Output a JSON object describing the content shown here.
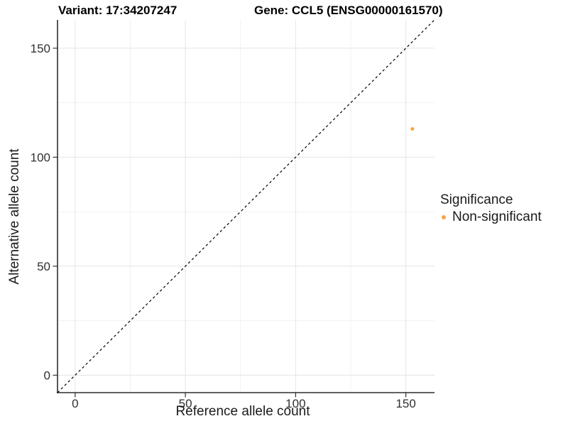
{
  "header": {
    "variant_title": "Variant: 17:34207247",
    "gene_title": "Gene: CCL5 (ENSG00000161570)"
  },
  "legend": {
    "title": "Significance",
    "items": [
      {
        "label": "Non-significant",
        "color": "#F9A440",
        "marker": "circle-icon"
      }
    ]
  },
  "chart_data": {
    "type": "scatter",
    "title": "Variant: 17:34207247    Gene: CCL5 (ENSG00000161570)",
    "xlabel": "Reference allele count",
    "ylabel": "Alternative allele count",
    "xlim": [
      -8,
      163
    ],
    "ylim": [
      -8,
      163
    ],
    "x_ticks": [
      0,
      50,
      100,
      150
    ],
    "y_ticks": [
      0,
      50,
      100,
      150
    ],
    "x_minor_ticks": [
      25,
      75,
      125
    ],
    "y_minor_ticks": [
      25,
      75,
      125
    ],
    "grid": true,
    "legend_position": "right-center",
    "series": [
      {
        "name": "Non-significant",
        "color": "#F9A440",
        "points": [
          {
            "x": 153,
            "y": 113
          }
        ]
      }
    ],
    "reference_line": {
      "type": "identity",
      "slope": 1,
      "intercept": 0,
      "style": "dashed",
      "color": "#000000"
    },
    "style_colors": {
      "axis_line": "#2e2e2e",
      "tick_mark": "#333333",
      "tick_label": "#303030",
      "grid_major": "#e4e4e4",
      "grid_minor": "#f1f1f1",
      "background": "#ffffff"
    }
  }
}
